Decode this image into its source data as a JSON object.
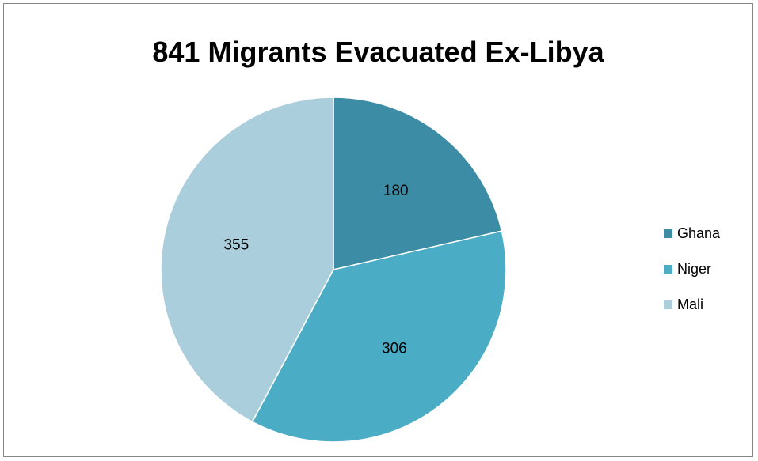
{
  "chart_data": {
    "type": "pie",
    "title": "841 Migrants Evacuated Ex-Libya",
    "categories": [
      "Ghana",
      "Niger",
      "Mali"
    ],
    "values": [
      180,
      306,
      355
    ],
    "colors": [
      "#3c8ca6",
      "#4bacc6",
      "#aacedc"
    ],
    "legend_position": "right",
    "slice_edge_color": "#ffffff"
  }
}
